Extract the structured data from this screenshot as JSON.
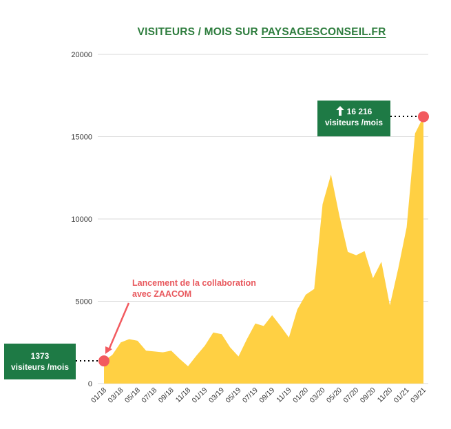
{
  "title": {
    "prefix": "VISITEURS / MOIS SUR ",
    "site": "PAYSAGESCONSEIL.FR"
  },
  "colors": {
    "area": "#ffd043",
    "title": "#2e7d3e",
    "callout_bg": "#1e7a45",
    "marker": "#f25a5f",
    "annotation": "#e8575c"
  },
  "callouts": {
    "start": {
      "value": "1373",
      "unit": "visiteurs /mois"
    },
    "end": {
      "value": "16 216",
      "unit": "visiteurs /mois",
      "icon": "arrow-up-icon"
    }
  },
  "annotation": {
    "line1": "Lancement de la collaboration",
    "line2": "avec ZAACOM"
  },
  "chart_data": {
    "type": "area",
    "title": "VISITEURS / MOIS SUR PAYSAGESCONSEIL.FR",
    "xlabel": "",
    "ylabel": "",
    "ylim": [
      0,
      20000
    ],
    "yticks": [
      0,
      5000,
      10000,
      15000,
      20000
    ],
    "ytick_labels": [
      "0",
      "5000",
      "10000",
      "15000",
      "20000"
    ],
    "grid": true,
    "x_tick_labels": [
      "01/18",
      "03/18",
      "05/18",
      "07/18",
      "09/18",
      "11/18",
      "01/19",
      "03/19",
      "05/19",
      "07/19",
      "09/19",
      "11/19",
      "01/20",
      "03/20",
      "05/20",
      "07/20",
      "09/20",
      "11/20",
      "01/21",
      "03/21"
    ],
    "x": [
      "01/18",
      "02/18",
      "03/18",
      "04/18",
      "05/18",
      "06/18",
      "07/18",
      "08/18",
      "09/18",
      "10/18",
      "11/18",
      "12/18",
      "01/19",
      "02/19",
      "03/19",
      "04/19",
      "05/19",
      "06/19",
      "07/19",
      "08/19",
      "09/19",
      "10/19",
      "11/19",
      "12/19",
      "01/20",
      "02/20",
      "03/20",
      "04/20",
      "05/20",
      "06/20",
      "07/20",
      "08/20",
      "09/20",
      "10/20",
      "11/20",
      "12/20",
      "01/21",
      "02/21",
      "03/21"
    ],
    "series": [
      {
        "values": [
          1373,
          1750,
          2500,
          2700,
          2600,
          2000,
          1950,
          1900,
          2000,
          1500,
          1050,
          1700,
          2300,
          3100,
          3000,
          2200,
          1650,
          2700,
          3650,
          3500,
          4150,
          3500,
          2800,
          4500,
          5400,
          5750,
          10900,
          12700,
          10200,
          8000,
          7800,
          8050,
          6400,
          7400,
          4750,
          7000,
          9500,
          15200,
          16216
        ]
      }
    ]
  }
}
